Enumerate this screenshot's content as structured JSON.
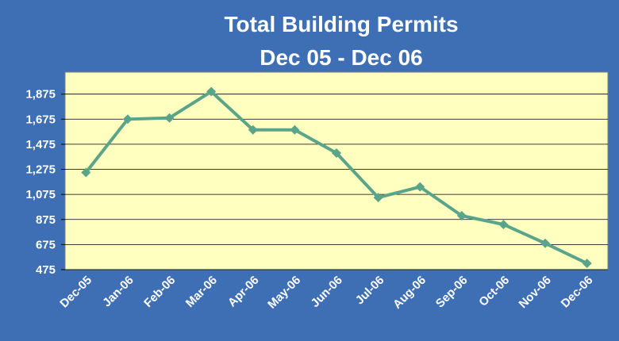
{
  "chart_data": {
    "type": "line",
    "title": "Total Building Permits",
    "subtitle": "Dec 05 - Dec 06",
    "categories": [
      "Dec-05",
      "Jan-06",
      "Feb-06",
      "Mar-06",
      "Apr-06",
      "May-06",
      "Jun-06",
      "Jul-06",
      "Aug-06",
      "Sep-06",
      "Oct-06",
      "Nov-06",
      "Dec-06"
    ],
    "values": [
      1250,
      1675,
      1685,
      1895,
      1590,
      1590,
      1405,
      1050,
      1135,
      905,
      835,
      685,
      525
    ],
    "color": "#5aa58a",
    "ylim": [
      475,
      2050
    ],
    "yticks": [
      {
        "value": 475,
        "label": "475"
      },
      {
        "value": 675,
        "label": "675"
      },
      {
        "value": 875,
        "label": "875"
      },
      {
        "value": 1075,
        "label": "1,075"
      },
      {
        "value": 1275,
        "label": "1,275"
      },
      {
        "value": 1475,
        "label": "1,475"
      },
      {
        "value": 1675,
        "label": "1,675"
      },
      {
        "value": 1875,
        "label": "1,875"
      }
    ],
    "grid": true
  }
}
